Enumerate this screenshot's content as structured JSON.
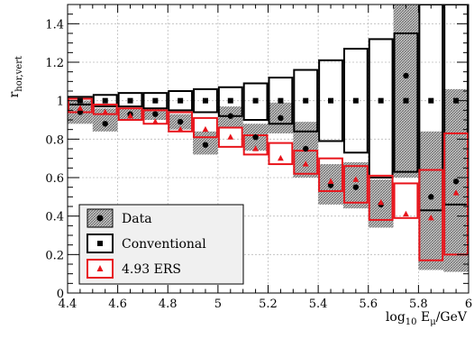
{
  "chart_data": {
    "type": "scatter",
    "title": "",
    "xlabel": {
      "prefix": "log",
      "sub1": "10",
      "mid": " E",
      "sub2": "μ",
      "suffix": "/GeV"
    },
    "ylabel": {
      "base": "r",
      "sub": "hor,vert"
    },
    "xlim": [
      4.4,
      6.0
    ],
    "ylim": [
      0,
      1.5
    ],
    "x_ticks": [
      4.4,
      4.6,
      4.8,
      5.0,
      5.2,
      5.4,
      5.6,
      5.8,
      6.0
    ],
    "x_tick_labels": [
      "4.4",
      "4.6",
      "4.8",
      "5",
      "5.2",
      "5.4",
      "5.6",
      "5.8",
      "6"
    ],
    "y_ticks": [
      0,
      0.2,
      0.4,
      0.6,
      0.8,
      1.0,
      1.2,
      1.4
    ],
    "y_tick_labels": [
      "0",
      "0.2",
      "0.4",
      "0.6",
      "0.8",
      "1",
      "1.2",
      "1.4"
    ],
    "bin_edges": [
      4.4,
      4.5,
      4.6,
      4.7,
      4.8,
      4.9,
      5.0,
      5.1,
      5.2,
      5.3,
      5.4,
      5.5,
      5.6,
      5.7,
      5.8,
      5.9,
      6.0
    ],
    "grid": true,
    "legend_position": "bottom-left",
    "series": [
      {
        "name": "Data",
        "marker": "circle",
        "color": "#000000",
        "fill": "#aaaaaa",
        "values": [
          0.94,
          0.88,
          0.93,
          0.93,
          0.89,
          0.77,
          0.92,
          0.81,
          0.91,
          0.75,
          0.56,
          0.55,
          0.46,
          1.13,
          0.5,
          0.58
        ],
        "band_low": [
          0.88,
          0.84,
          0.9,
          0.9,
          0.85,
          0.72,
          0.86,
          0.74,
          0.83,
          0.6,
          0.46,
          0.44,
          0.34,
          0.6,
          0.12,
          0.11
        ],
        "band_high": [
          1.0,
          0.96,
          0.96,
          0.96,
          0.93,
          0.84,
          0.97,
          0.88,
          0.99,
          0.89,
          0.67,
          0.68,
          0.59,
          1.5,
          0.84,
          1.06
        ]
      },
      {
        "name": "Conventional",
        "marker": "square",
        "color": "#000000",
        "values": [
          1.0,
          1.0,
          1.0,
          1.0,
          1.0,
          1.0,
          1.0,
          1.0,
          1.0,
          1.0,
          1.0,
          1.0,
          1.0,
          1.0,
          1.0,
          1.0
        ],
        "band_low": [
          0.98,
          0.97,
          0.97,
          0.96,
          0.95,
          0.94,
          0.92,
          0.9,
          0.88,
          0.84,
          0.79,
          0.73,
          0.6,
          0.63,
          0.43,
          0.46
        ],
        "band_high": [
          1.02,
          1.03,
          1.04,
          1.04,
          1.05,
          1.06,
          1.07,
          1.09,
          1.12,
          1.16,
          1.21,
          1.27,
          1.32,
          1.35,
          1.5,
          1.5
        ]
      },
      {
        "name": "4.93 ERS",
        "marker": "triangle",
        "color": "#e8141b",
        "values": [
          0.96,
          0.94,
          0.92,
          0.89,
          0.85,
          0.85,
          0.81,
          0.75,
          0.7,
          0.67,
          0.58,
          0.59,
          0.47,
          0.41,
          0.39,
          0.52
        ],
        "band_low": [
          0.94,
          0.93,
          0.9,
          0.88,
          0.84,
          0.81,
          0.76,
          0.72,
          0.67,
          0.62,
          0.53,
          0.47,
          0.38,
          0.39,
          0.17,
          0.2
        ],
        "band_high": [
          1.01,
          0.98,
          0.96,
          0.95,
          0.94,
          0.91,
          0.86,
          0.82,
          0.78,
          0.74,
          0.7,
          0.66,
          0.61,
          0.57,
          0.64,
          0.83
        ]
      }
    ]
  }
}
